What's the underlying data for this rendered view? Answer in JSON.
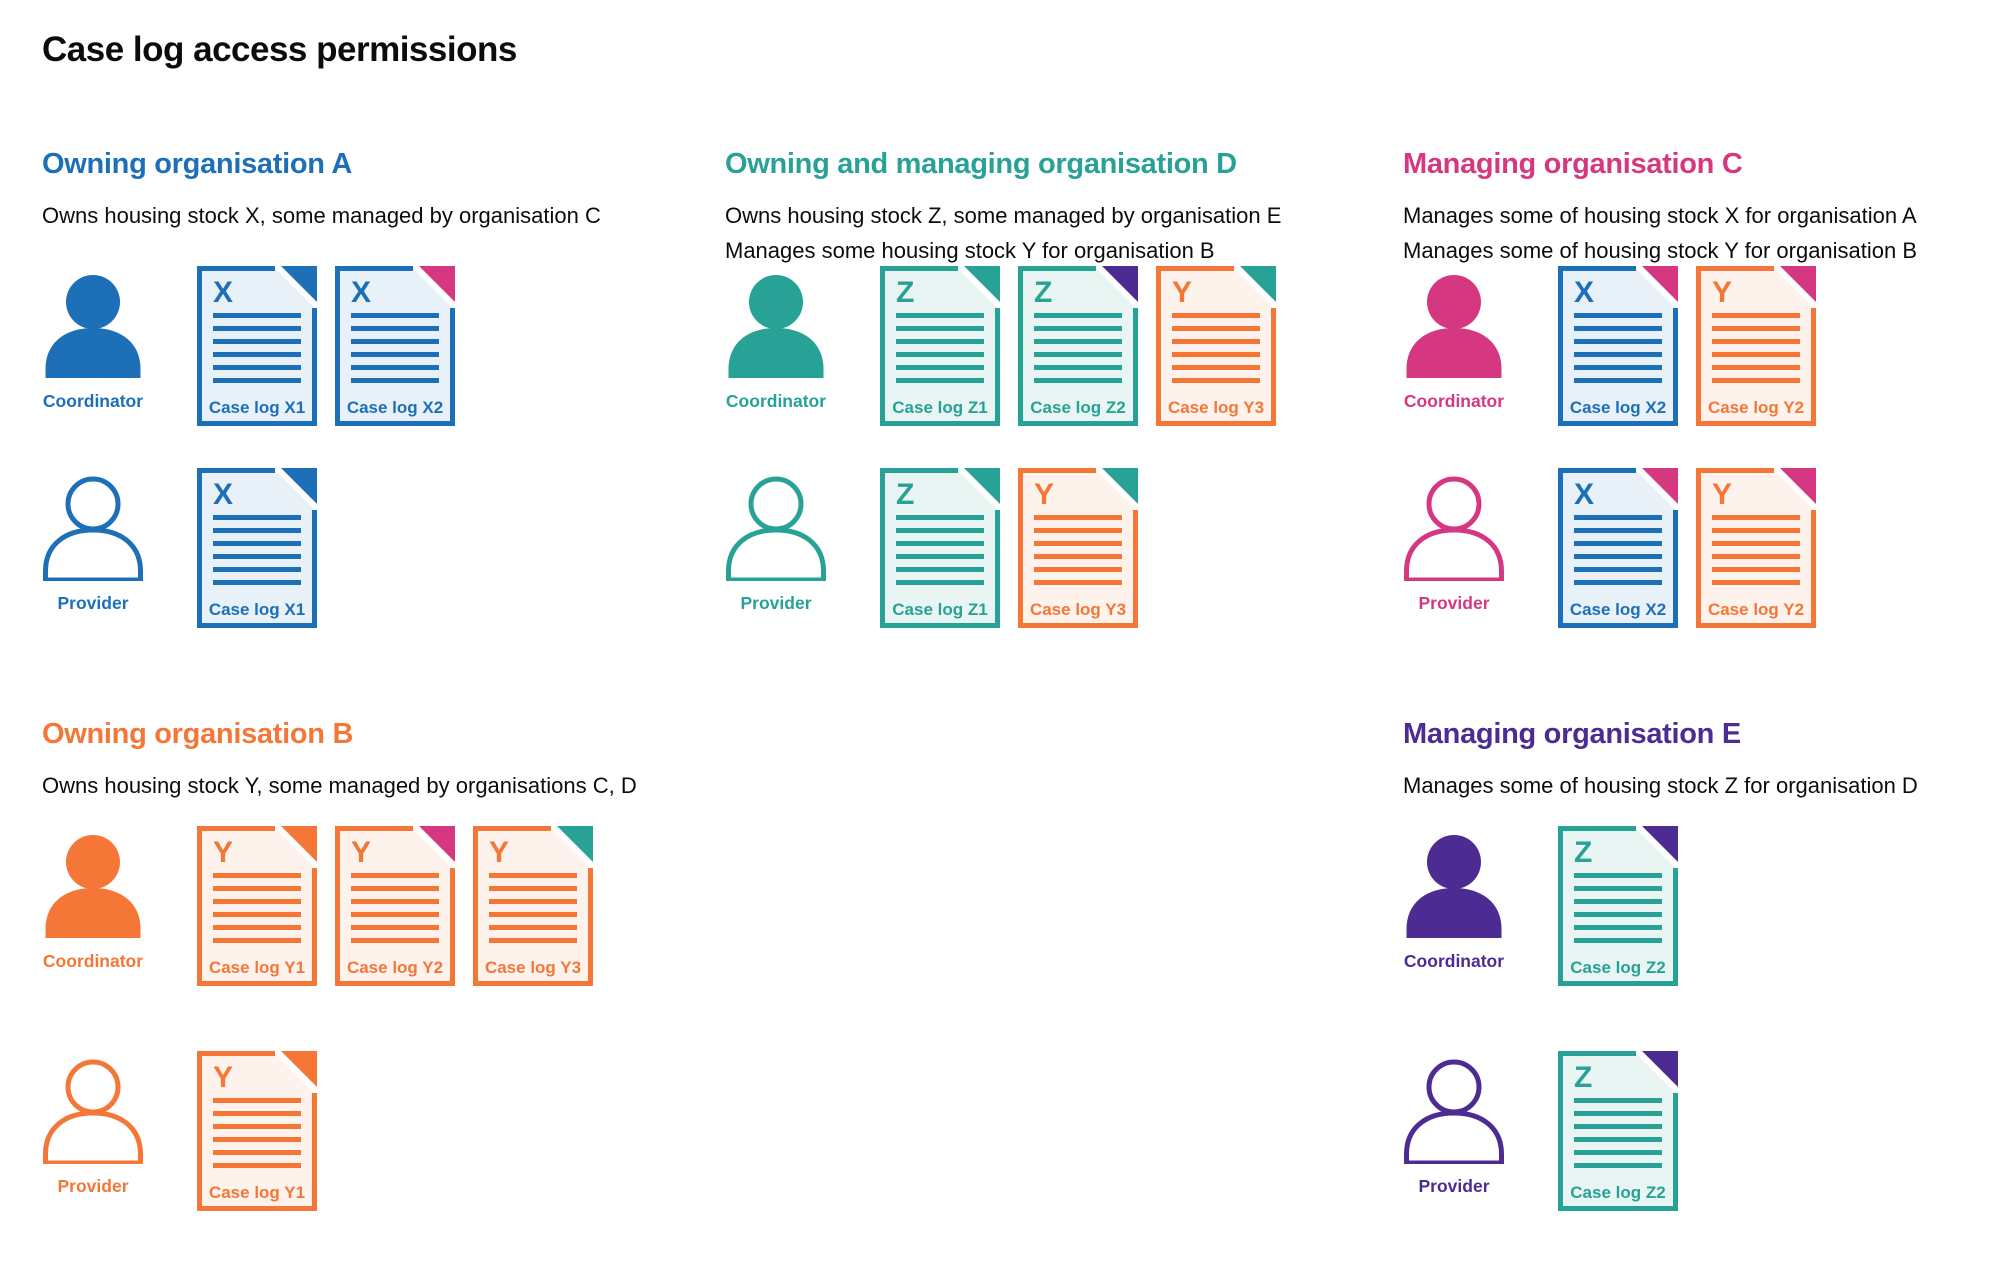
{
  "page": {
    "title": "Case log access permissions",
    "background": "#ffffff",
    "text_color": "#0b0c0c"
  },
  "colors": {
    "blue": "#1d70b8",
    "teal": "#28a197",
    "pink": "#d53880",
    "orange": "#f47738",
    "purple": "#4c2c92",
    "tint_blue": "#e8f1f8",
    "tint_teal": "#e9f5f2",
    "tint_orange": "#fdf2ec"
  },
  "sections": [
    {
      "id": "owning-organisation-a",
      "title": "Owning organisation A",
      "color": "blue",
      "description": [
        "Owns housing stock X, some managed by organisation C"
      ],
      "personas": [
        {
          "role": "coordinator",
          "label": "Coordinator",
          "icon": "person-filled",
          "docs": [
            {
              "letter": "X",
              "color": "blue",
              "fold": "blue",
              "label": "Case log X1"
            },
            {
              "letter": "X",
              "color": "blue",
              "fold": "pink",
              "label": "Case log X2"
            }
          ]
        },
        {
          "role": "provider",
          "label": "Provider",
          "icon": "person-outline",
          "docs": [
            {
              "letter": "X",
              "color": "blue",
              "fold": "blue",
              "label": "Case log X1"
            }
          ]
        }
      ]
    },
    {
      "id": "owning-and-managing-organisation-d",
      "title": "Owning and managing organisation D",
      "color": "teal",
      "description": [
        "Owns housing stock Z, some managed by organisation E",
        "Manages some housing stock Y for organisation B"
      ],
      "personas": [
        {
          "role": "coordinator",
          "label": "Coordinator",
          "icon": "person-filled",
          "docs": [
            {
              "letter": "Z",
              "color": "teal",
              "fold": "teal",
              "label": "Case log Z1"
            },
            {
              "letter": "Z",
              "color": "teal",
              "fold": "purple",
              "label": "Case log Z2"
            },
            {
              "letter": "Y",
              "color": "orange",
              "fold": "teal",
              "label": "Case log Y3"
            }
          ]
        },
        {
          "role": "provider",
          "label": "Provider",
          "icon": "person-outline",
          "docs": [
            {
              "letter": "Z",
              "color": "teal",
              "fold": "teal",
              "label": "Case log Z1"
            },
            {
              "letter": "Y",
              "color": "orange",
              "fold": "teal",
              "label": "Case log Y3"
            }
          ]
        }
      ]
    },
    {
      "id": "managing-organisation-c",
      "title": "Managing organisation C",
      "color": "pink",
      "description": [
        "Manages some of housing stock X for organisation A",
        "Manages some of housing stock Y for organisation B"
      ],
      "personas": [
        {
          "role": "coordinator",
          "label": "Coordinator",
          "icon": "person-filled",
          "docs": [
            {
              "letter": "X",
              "color": "blue",
              "fold": "pink",
              "label": "Case log X2"
            },
            {
              "letter": "Y",
              "color": "orange",
              "fold": "pink",
              "label": "Case log Y2"
            }
          ]
        },
        {
          "role": "provider",
          "label": "Provider",
          "icon": "person-outline",
          "docs": [
            {
              "letter": "X",
              "color": "blue",
              "fold": "pink",
              "label": "Case log X2"
            },
            {
              "letter": "Y",
              "color": "orange",
              "fold": "pink",
              "label": "Case log Y2"
            }
          ]
        }
      ]
    },
    {
      "id": "owning-organisation-b",
      "title": "Owning organisation B",
      "color": "orange",
      "description": [
        "Owns housing stock Y, some managed by organisations C, D"
      ],
      "personas": [
        {
          "role": "coordinator",
          "label": "Coordinator",
          "icon": "person-filled",
          "docs": [
            {
              "letter": "Y",
              "color": "orange",
              "fold": "orange",
              "label": "Case log Y1"
            },
            {
              "letter": "Y",
              "color": "orange",
              "fold": "pink",
              "label": "Case log Y2"
            },
            {
              "letter": "Y",
              "color": "orange",
              "fold": "teal",
              "label": "Case log Y3"
            }
          ]
        },
        {
          "role": "provider",
          "label": "Provider",
          "icon": "person-outline",
          "docs": [
            {
              "letter": "Y",
              "color": "orange",
              "fold": "orange",
              "label": "Case log Y1"
            }
          ]
        }
      ]
    },
    {
      "id": "managing-organisation-e",
      "title": "Managing organisation E",
      "color": "purple",
      "description": [
        "Manages some of housing stock Z for organisation D"
      ],
      "personas": [
        {
          "role": "coordinator",
          "label": "Coordinator",
          "icon": "person-filled",
          "docs": [
            {
              "letter": "Z",
              "color": "teal",
              "fold": "purple",
              "label": "Case log Z2"
            }
          ]
        },
        {
          "role": "provider",
          "label": "Provider",
          "icon": "person-outline",
          "docs": [
            {
              "letter": "Z",
              "color": "teal",
              "fold": "purple",
              "label": "Case log Z2"
            }
          ]
        }
      ]
    }
  ]
}
